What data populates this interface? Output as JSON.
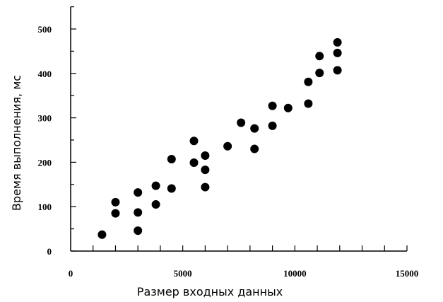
{
  "chart_data": {
    "type": "scatter",
    "title": "",
    "xlabel": "Размер входных данных",
    "ylabel": "Время выполнения, мс",
    "xlim": [
      0,
      15000
    ],
    "ylim": [
      0,
      550
    ],
    "x_ticks": [
      0,
      5000,
      10000,
      15000
    ],
    "x_minor_step": 1000,
    "y_ticks": [
      0,
      100,
      200,
      300,
      400,
      500
    ],
    "grid": false,
    "legend": "none",
    "marker_color": "#000000",
    "points": [
      {
        "x": 1400,
        "y": 37
      },
      {
        "x": 2000,
        "y": 85
      },
      {
        "x": 2000,
        "y": 110
      },
      {
        "x": 3000,
        "y": 46
      },
      {
        "x": 3000,
        "y": 87
      },
      {
        "x": 3000,
        "y": 132
      },
      {
        "x": 3800,
        "y": 105
      },
      {
        "x": 3800,
        "y": 147
      },
      {
        "x": 4500,
        "y": 141
      },
      {
        "x": 4500,
        "y": 207
      },
      {
        "x": 5500,
        "y": 199
      },
      {
        "x": 5500,
        "y": 248
      },
      {
        "x": 6000,
        "y": 144
      },
      {
        "x": 6000,
        "y": 183
      },
      {
        "x": 6000,
        "y": 215
      },
      {
        "x": 7000,
        "y": 236
      },
      {
        "x": 7600,
        "y": 289
      },
      {
        "x": 8200,
        "y": 230
      },
      {
        "x": 8200,
        "y": 276
      },
      {
        "x": 9000,
        "y": 282
      },
      {
        "x": 9000,
        "y": 327
      },
      {
        "x": 9700,
        "y": 322
      },
      {
        "x": 10600,
        "y": 332
      },
      {
        "x": 10600,
        "y": 381
      },
      {
        "x": 11100,
        "y": 401
      },
      {
        "x": 11100,
        "y": 439
      },
      {
        "x": 11900,
        "y": 407
      },
      {
        "x": 11900,
        "y": 446
      },
      {
        "x": 11900,
        "y": 470
      }
    ]
  }
}
